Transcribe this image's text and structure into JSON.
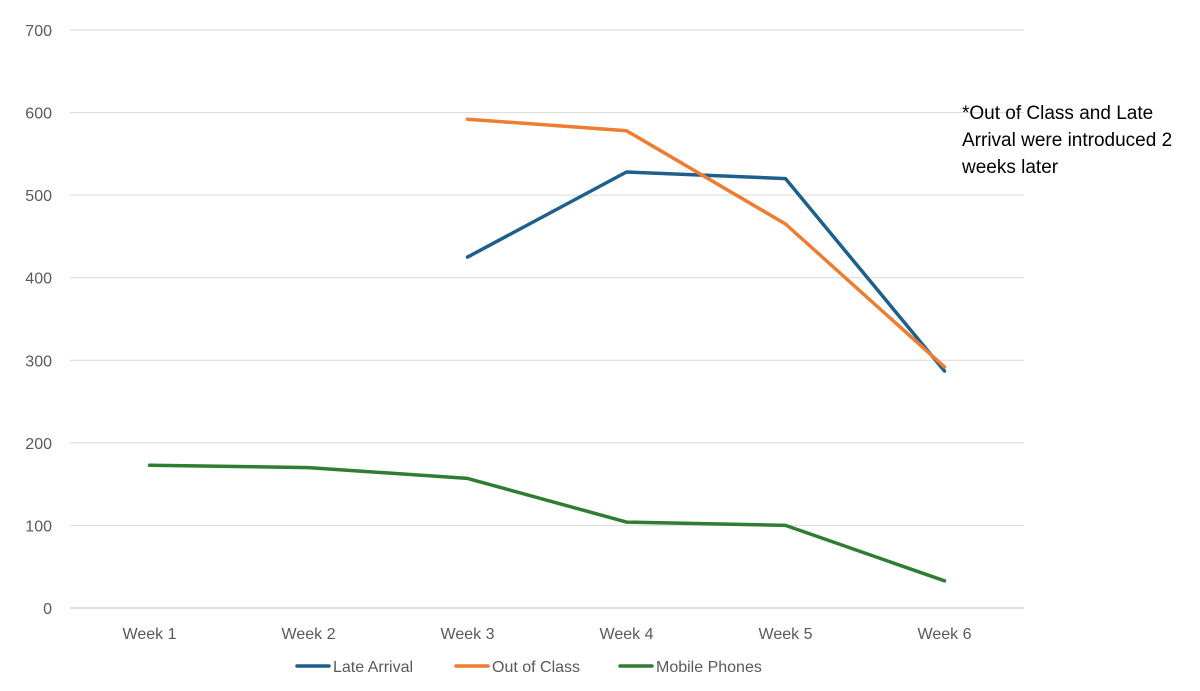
{
  "chart_data": {
    "type": "line",
    "title": "",
    "xlabel": "",
    "ylabel": "",
    "categories": [
      "Week 1",
      "Week 2",
      "Week 3",
      "Week 4",
      "Week 5",
      "Week 6"
    ],
    "ylim": [
      0,
      700
    ],
    "yticks": [
      0,
      100,
      200,
      300,
      400,
      500,
      600,
      700
    ],
    "grid": true,
    "legend_position": "bottom",
    "series": [
      {
        "name": "Late Arrival",
        "color": "#1f5f8b",
        "values": [
          null,
          null,
          425,
          528,
          520,
          287
        ]
      },
      {
        "name": "Out of Class",
        "color": "#ed7d31",
        "values": [
          null,
          null,
          592,
          578,
          465,
          292
        ]
      },
      {
        "name": "Mobile Phones",
        "color": "#2e7d32",
        "values": [
          173,
          170,
          157,
          104,
          100,
          33
        ]
      }
    ],
    "annotation": "*Out of Class and Late Arrival were introduced 2 weeks later"
  }
}
